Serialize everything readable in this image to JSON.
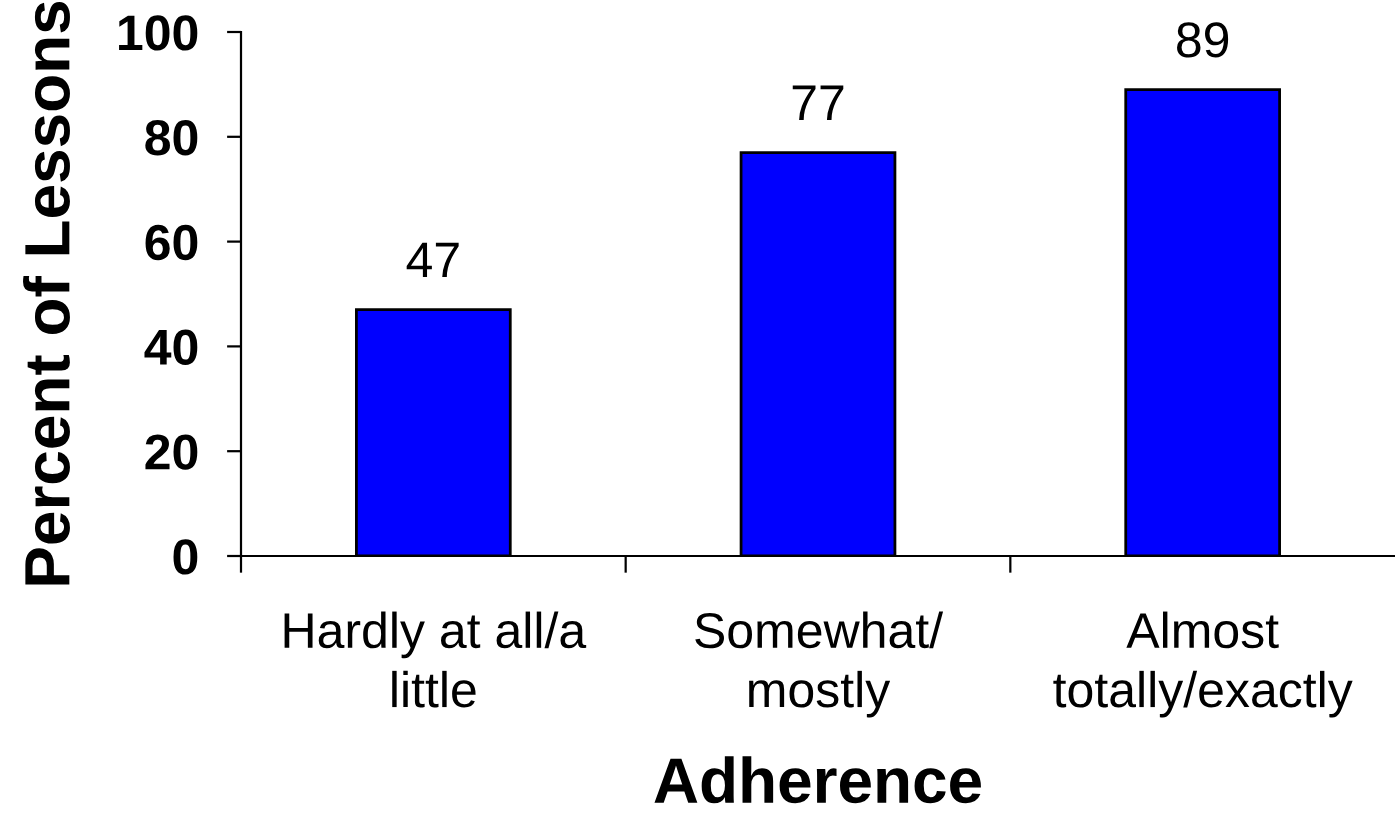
{
  "chart_data": {
    "type": "bar",
    "xlabel": "Adherence",
    "ylabel": "Percent of Lessons",
    "categories": [
      "Hardly at all/a\nlittle",
      "Somewhat/\nmostly",
      "Almost\ntotally/exactly"
    ],
    "values": [
      47,
      77,
      89
    ],
    "color": "#0000ff",
    "ylim": [
      0,
      100
    ],
    "yticks": [
      0,
      20,
      40,
      60,
      80,
      100
    ],
    "data_labels": true
  }
}
